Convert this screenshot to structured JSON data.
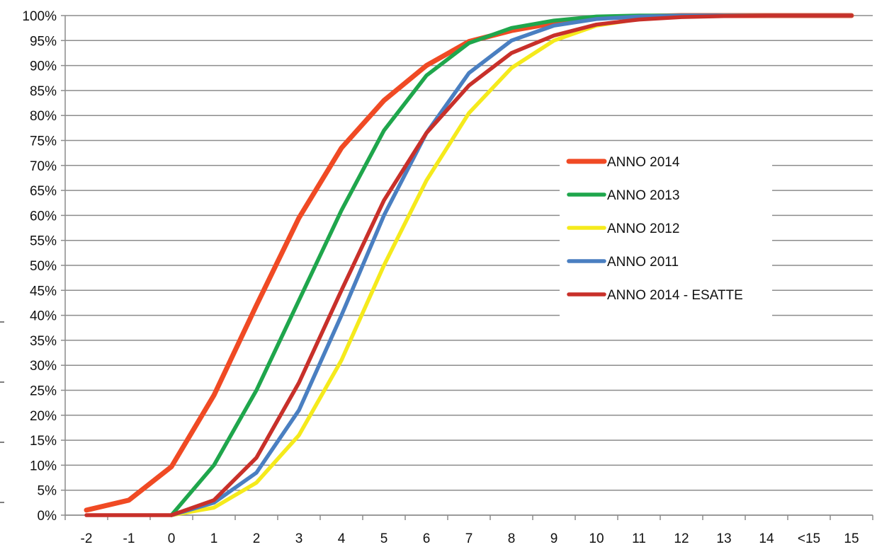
{
  "chart_data": {
    "type": "line",
    "categories": [
      "-2",
      "-1",
      "0",
      "1",
      "2",
      "3",
      "4",
      "5",
      "6",
      "7",
      "8",
      "9",
      "10",
      "11",
      "12",
      "13",
      "14",
      "<15",
      "15"
    ],
    "y_ticks": [
      "0%",
      "5%",
      "10%",
      "15%",
      "20%",
      "25%",
      "30%",
      "35%",
      "40%",
      "45%",
      "50%",
      "55%",
      "60%",
      "65%",
      "70%",
      "75%",
      "80%",
      "85%",
      "90%",
      "95%",
      "100%"
    ],
    "ylim": [
      0,
      100
    ],
    "grid": "horizontal",
    "legend_position": "right",
    "series": [
      {
        "name": "ANNO 2014",
        "color": "#f04a24",
        "values": [
          1,
          3,
          9.7,
          24,
          42,
          59.5,
          73.5,
          83,
          90,
          94.8,
          97,
          98.5,
          99.5,
          99.8,
          100,
          100,
          100,
          100,
          100
        ]
      },
      {
        "name": "ANNO 2013",
        "color": "#1fa64c",
        "values": [
          null,
          null,
          0,
          10,
          25,
          43,
          61,
          77,
          88,
          94.5,
          97.5,
          99,
          99.8,
          100,
          100,
          100,
          100,
          100,
          100
        ]
      },
      {
        "name": "ANNO 2012",
        "color": "#f5ea1c",
        "values": [
          null,
          null,
          0,
          1.5,
          6.5,
          16,
          31,
          50,
          67,
          80.5,
          89.5,
          95,
          98,
          99.3,
          99.8,
          100,
          100,
          100,
          100
        ]
      },
      {
        "name": "ANNO 2011",
        "color": "#4a7fc1",
        "values": [
          null,
          null,
          0,
          2.5,
          8.5,
          21,
          40,
          60,
          76.5,
          88.5,
          95,
          98,
          99.3,
          99.8,
          100,
          100,
          100,
          100,
          100
        ]
      },
      {
        "name": "ANNO 2014 - ESATTE",
        "color": "#c8302a",
        "values": [
          0,
          0,
          0,
          3,
          11.5,
          26.5,
          45,
          63,
          76.5,
          86,
          92.5,
          96,
          98.2,
          99.2,
          99.7,
          99.9,
          100,
          100,
          100
        ]
      }
    ]
  }
}
